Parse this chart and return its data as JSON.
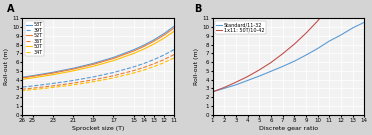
{
  "panel_A": {
    "label": "A",
    "xlabel": "Sprocket size (T)",
    "ylabel": "Roll-out (m)",
    "xlim": [
      26,
      11
    ],
    "ylim": [
      0,
      11
    ],
    "xticks": [
      26,
      25,
      23,
      21,
      19,
      17,
      15,
      14,
      13,
      12,
      11
    ],
    "xticklabels": [
      "26",
      "25",
      "23",
      "21",
      "19",
      "17",
      "15",
      "14",
      "13",
      "12",
      "11"
    ],
    "yticks": [
      0,
      1,
      2,
      3,
      4,
      5,
      6,
      7,
      8,
      9,
      10,
      11
    ],
    "chainrings": [
      {
        "size": 53,
        "color": "#5b9bd5",
        "style": "-",
        "label": "53T"
      },
      {
        "size": 39,
        "color": "#5b9bd5",
        "style": "--",
        "label": "39T"
      },
      {
        "size": 52,
        "color": "#ed7d31",
        "style": "-",
        "label": "52T"
      },
      {
        "size": 36,
        "color": "#ed7d31",
        "style": "--",
        "label": "36T"
      },
      {
        "size": 50,
        "color": "#ffc000",
        "style": "-",
        "label": "50T"
      },
      {
        "size": 34,
        "color": "#ffc000",
        "style": "--",
        "label": "34T"
      }
    ],
    "sprockets": [
      11,
      12,
      13,
      14,
      15,
      17,
      19,
      21,
      23,
      25,
      26
    ],
    "wheel_circ": 2.096,
    "plot_bg": "#f2f2f2",
    "grid_color": "#ffffff",
    "linewidth": 0.8
  },
  "panel_B": {
    "label": "B",
    "xlabel": "Discrete gear ratio",
    "ylabel": "Roll-out (m)",
    "xlim": [
      1,
      14
    ],
    "ylim": [
      0,
      11
    ],
    "xticks": [
      1,
      2,
      3,
      4,
      5,
      6,
      7,
      8,
      9,
      10,
      11,
      12,
      13,
      14
    ],
    "yticks": [
      0,
      1,
      2,
      3,
      4,
      5,
      6,
      7,
      8,
      9,
      10,
      11
    ],
    "series": [
      {
        "label": "Standard/11-32",
        "color": "#5b9bd5",
        "style": "-",
        "x": [
          1,
          2,
          3,
          4,
          5,
          6,
          7,
          8,
          9,
          10,
          11,
          12,
          13,
          14
        ],
        "y": [
          2.6,
          3.0,
          3.4,
          3.9,
          4.4,
          4.95,
          5.5,
          6.1,
          6.8,
          7.55,
          8.4,
          9.1,
          9.9,
          10.55
        ]
      },
      {
        "label": "1x11: 50T/10-42",
        "color": "#c0504d",
        "style": "-",
        "x": [
          1,
          2,
          3,
          4,
          5,
          6,
          7,
          8,
          9,
          10,
          11
        ],
        "y": [
          2.6,
          3.1,
          3.7,
          4.35,
          5.1,
          5.95,
          6.95,
          8.05,
          9.3,
          10.7,
          12.3
        ]
      }
    ],
    "plot_bg": "#f2f2f2",
    "grid_color": "#ffffff",
    "linewidth": 0.8
  },
  "fig_bg": "#d4d4d4",
  "tick_fontsize": 4.0,
  "label_fontsize": 4.5,
  "legend_fontsize": 3.5,
  "panel_label_fontsize": 7
}
